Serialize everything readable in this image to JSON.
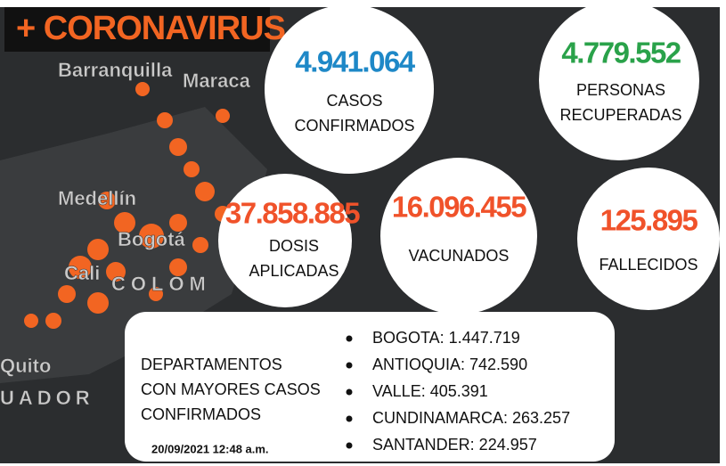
{
  "header": {
    "title": "+ CORONAVIRUS"
  },
  "stats": [
    {
      "value": "4.941.064",
      "label": [
        "CASOS",
        "CONFIRMADOS"
      ]
    },
    {
      "value": "4.779.552",
      "label": [
        "PERSONAS",
        "RECUPERADAS"
      ]
    },
    {
      "value": "37.858.885",
      "label": [
        "DOSIS",
        "APLICADAS"
      ]
    },
    {
      "value": "16.096.455",
      "label": [
        "VACUNADOS"
      ]
    },
    {
      "value": "125.895",
      "label": [
        "FALLECIDOS"
      ]
    }
  ],
  "map_labels": [
    "Barranquilla",
    "Maraca",
    "Medellín",
    "Bogotá",
    "Cali",
    "COLOM",
    "Quito",
    "UADOR"
  ],
  "departments": {
    "heading": [
      "DEPARTAMENTOS",
      "CON MAYORES CASOS",
      "CONFIRMADOS"
    ],
    "items": [
      "BOGOTA: 1.447.719",
      "ANTIOQUIA: 742.590",
      "VALLE: 405.391",
      "CUNDINAMARCA: 263.257",
      "SANTANDER: 224.957"
    ],
    "timestamp": "20/09/2021  12:48 a.m."
  }
}
